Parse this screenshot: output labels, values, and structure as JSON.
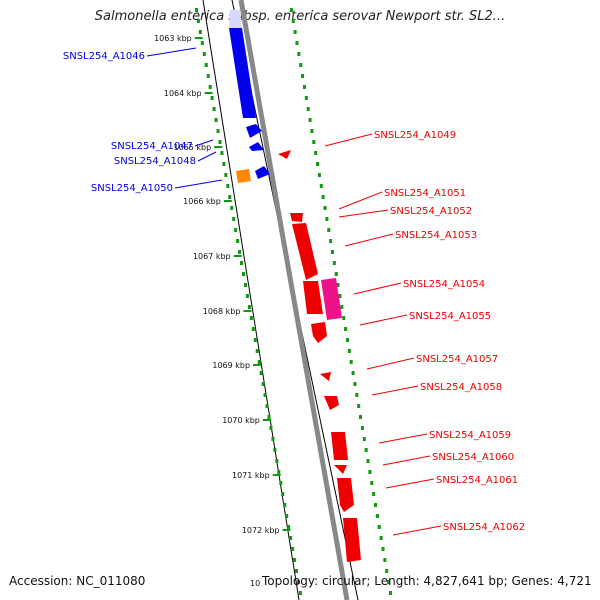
{
  "title": "Salmonella enterica subsp. enterica serovar Newport str. SL2...",
  "footer": {
    "accession": "Accession: NC_011080",
    "topology": "Topology: circular; Length: 4,827,641 bp; Genes: 4,721",
    "stub": "10"
  },
  "ticks": [
    "1063 kbp",
    "1064 kbp",
    "1065 kbp",
    "1066 kbp",
    "1067 kbp",
    "1068 kbp",
    "1069 kbp",
    "1070 kbp",
    "1071 kbp",
    "1072 kbp"
  ],
  "genes_left": [
    "SNSL254_A1046",
    "SNSL254_A1047",
    "SNSL254_A1048",
    "SNSL254_A1050"
  ],
  "genes_right": [
    "SNSL254_A1049",
    "SNSL254_A1051",
    "SNSL254_A1052",
    "SNSL254_A1053",
    "SNSL254_A1054",
    "SNSL254_A1055",
    "SNSL254_A1057",
    "SNSL254_A1058",
    "SNSL254_A1059",
    "SNSL254_A1060",
    "SNSL254_A1061",
    "SNSL254_A1062"
  ],
  "colors": {
    "blue": "#0000ee",
    "red": "#ee0000",
    "orange": "#ff8800",
    "magenta": "#ee1188",
    "dots": "#119911",
    "backbone": "#888888"
  }
}
